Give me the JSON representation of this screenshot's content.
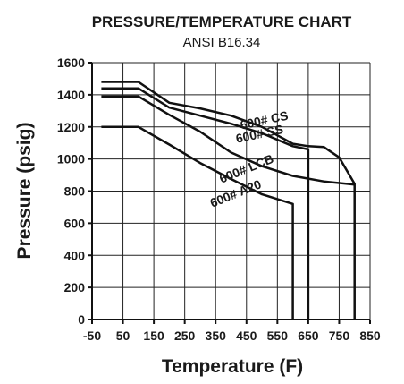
{
  "chart_data": {
    "type": "line",
    "title": "PRESSURE/TEMPERATURE CHART",
    "subtitle": "ANSI B16.34",
    "xlabel": "Temperature (F)",
    "ylabel": "Pressure (psig)",
    "xlim": [
      -50,
      850
    ],
    "ylim": [
      0,
      1600
    ],
    "x_ticks": [
      -50,
      50,
      150,
      250,
      350,
      450,
      550,
      650,
      750,
      850
    ],
    "x_tick_labels": [
      "-50",
      "50",
      "150",
      "250",
      "350",
      "450",
      "550",
      "650",
      "750",
      "850"
    ],
    "y_ticks": [
      0,
      200,
      400,
      600,
      800,
      1000,
      1200,
      1400,
      1600
    ],
    "y_tick_labels": [
      "0",
      "200",
      "400",
      "600",
      "800",
      "1000",
      "1200",
      "1400",
      "1600"
    ],
    "grid": true,
    "series": [
      {
        "name": "600# CS",
        "label_at": [
          510,
          1215
        ],
        "label_angle": -12,
        "points": [
          [
            -20,
            1480
          ],
          [
            100,
            1480
          ],
          [
            200,
            1350
          ],
          [
            300,
            1315
          ],
          [
            400,
            1270
          ],
          [
            500,
            1200
          ],
          [
            600,
            1095
          ],
          [
            650,
            1080
          ],
          [
            700,
            1075
          ],
          [
            750,
            1010
          ],
          [
            800,
            845
          ],
          [
            800,
            0
          ]
        ]
      },
      {
        "name": "600# SS",
        "label_at": [
          495,
          1130
        ],
        "label_angle": -12,
        "points": [
          [
            -20,
            1440
          ],
          [
            100,
            1440
          ],
          [
            200,
            1320
          ],
          [
            300,
            1270
          ],
          [
            400,
            1220
          ],
          [
            500,
            1160
          ],
          [
            600,
            1080
          ],
          [
            650,
            1060
          ],
          [
            650,
            0
          ]
        ]
      },
      {
        "name": "600# LCB",
        "label_at": [
          455,
          915
        ],
        "label_angle": -22,
        "points": [
          [
            -20,
            1390
          ],
          [
            100,
            1390
          ],
          [
            200,
            1275
          ],
          [
            300,
            1170
          ],
          [
            400,
            1040
          ],
          [
            500,
            955
          ],
          [
            600,
            895
          ],
          [
            700,
            860
          ],
          [
            800,
            840
          ]
        ]
      },
      {
        "name": "600# A20",
        "label_at": [
          420,
          760
        ],
        "label_angle": -22,
        "points": [
          [
            -20,
            1200
          ],
          [
            100,
            1200
          ],
          [
            200,
            1090
          ],
          [
            300,
            975
          ],
          [
            400,
            875
          ],
          [
            500,
            780
          ],
          [
            600,
            720
          ],
          [
            600,
            0
          ]
        ]
      }
    ]
  }
}
